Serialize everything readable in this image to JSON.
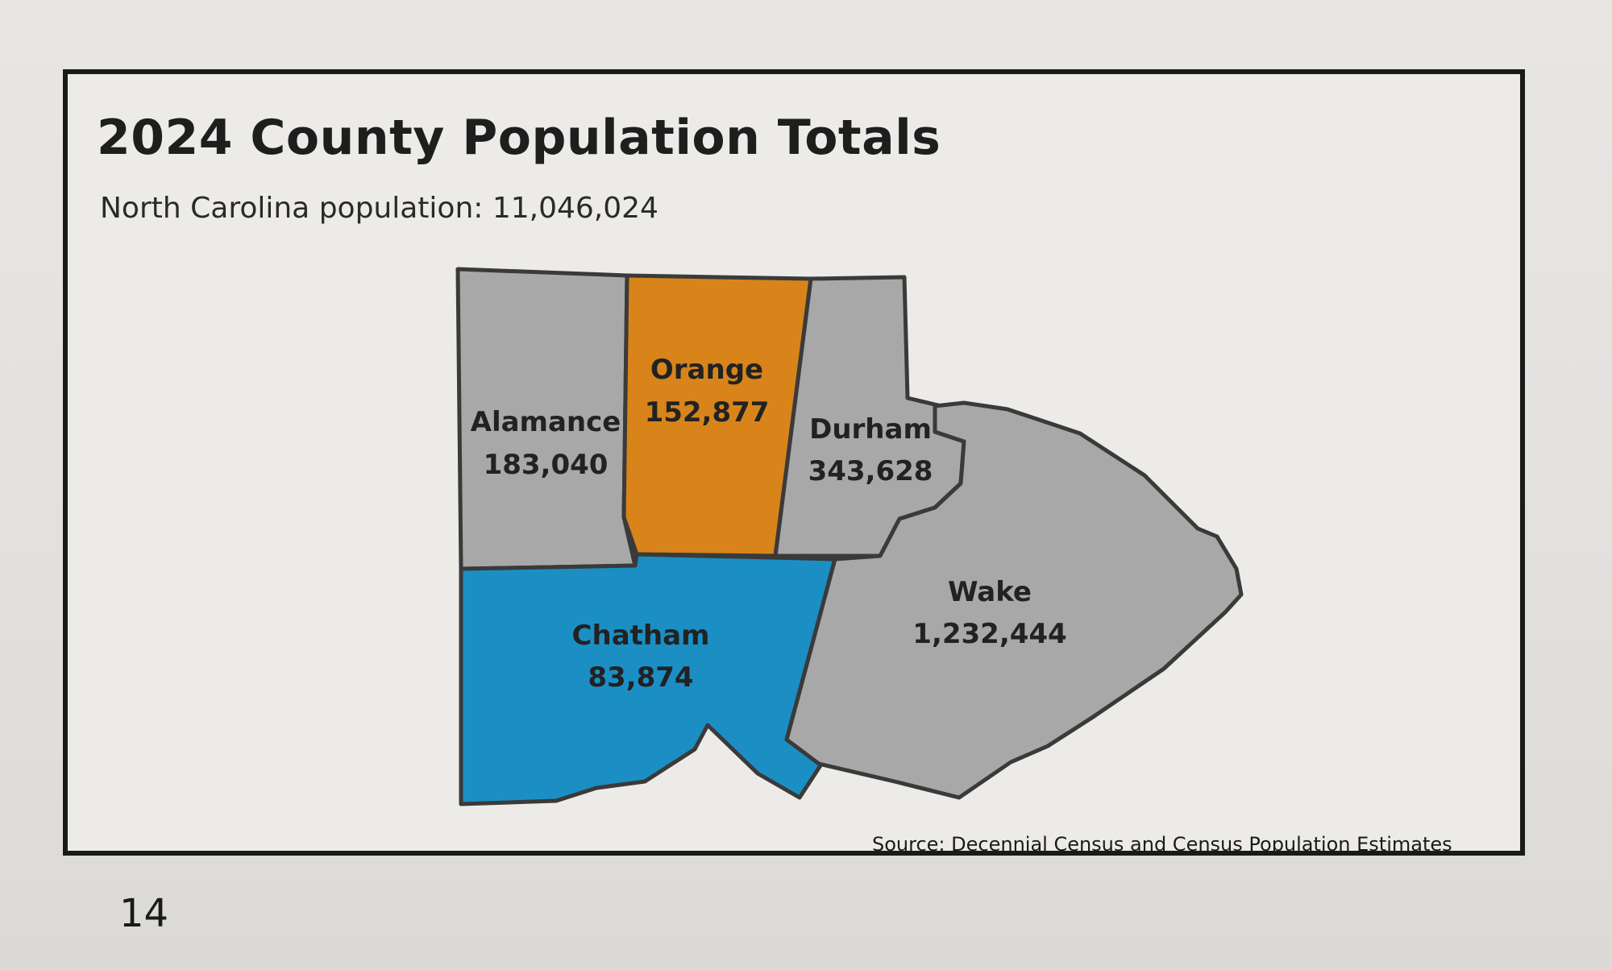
{
  "slide": {
    "title": "2024 County Population Totals",
    "subtitle": "North Carolina population: 11,046,024",
    "source": "Source: Decennial Census and Census Population Estimates",
    "page_number": "14"
  },
  "map": {
    "counties": [
      {
        "name": "Alamance",
        "population": "183,040",
        "fill": "#a9a8a8"
      },
      {
        "name": "Orange",
        "population": "152,877",
        "fill": "#d8841a"
      },
      {
        "name": "Durham",
        "population": "343,628",
        "fill": "#a9a8a8"
      },
      {
        "name": "Chatham",
        "population": "83,874",
        "fill": "#1b8fc4"
      },
      {
        "name": "Wake",
        "population": "1,232,444",
        "fill": "#a9a8a8"
      }
    ]
  }
}
